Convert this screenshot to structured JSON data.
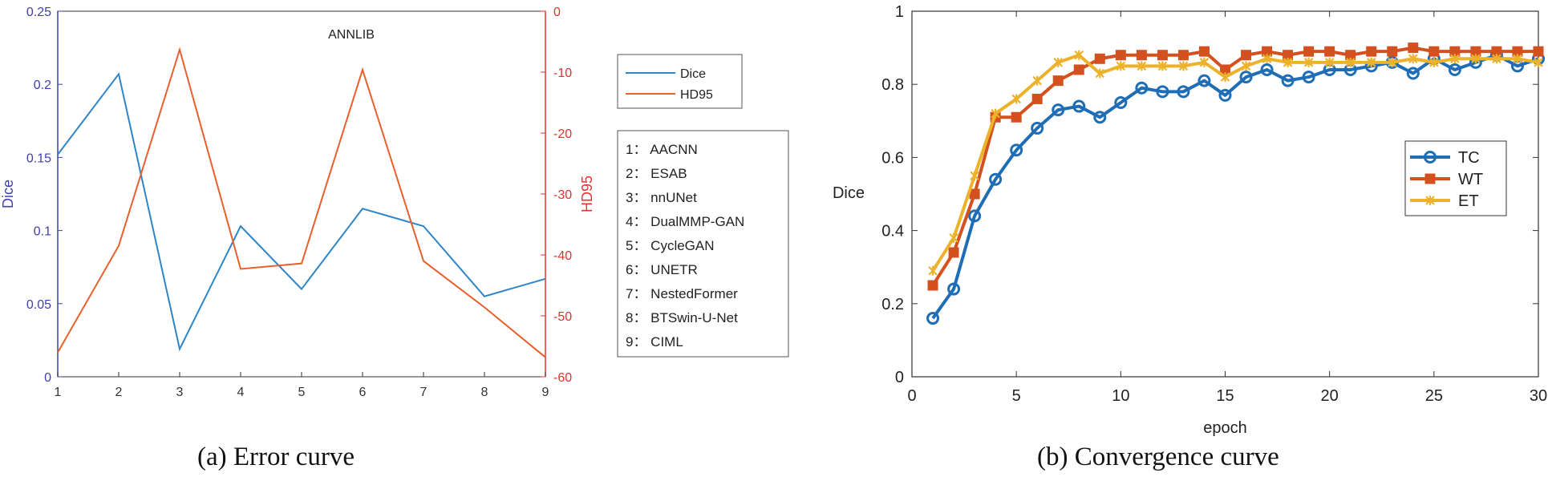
{
  "chart_data": [
    {
      "type": "line",
      "title": "ANNLIB",
      "caption": "(a) Error curve",
      "x": [
        1,
        2,
        3,
        4,
        5,
        6,
        7,
        8,
        9
      ],
      "xlim": [
        1,
        9
      ],
      "xticks": [
        "1",
        "2",
        "3",
        "4",
        "5",
        "6",
        "7",
        "8",
        "9"
      ],
      "ylabel_left": "Dice",
      "ylim_left": [
        0,
        0.25
      ],
      "yticks_left": [
        "0",
        "0.05",
        "0.1",
        "0.15",
        "0.2",
        "0.25"
      ],
      "ylabel_right": "HD95",
      "ylim_right": [
        -60,
        0
      ],
      "yticks_right": [
        "-60",
        "-50",
        "-40",
        "-30",
        "-20",
        "-10",
        "0"
      ],
      "series": [
        {
          "name": "Dice",
          "axis": "left",
          "color": "#2E86C8",
          "values": [
            0.152,
            0.207,
            0.019,
            0.103,
            0.06,
            0.115,
            0.103,
            0.055,
            0.067
          ]
        },
        {
          "name": "HD95",
          "axis": "right",
          "color": "#E8602C",
          "values": [
            -56,
            -38.5,
            -6.3,
            -42.3,
            -41.4,
            -9.6,
            -41,
            -48.6,
            -56.8
          ]
        }
      ],
      "legend": [
        "Dice",
        "HD95"
      ],
      "method_list": [
        "1： AACNN",
        "2： ESAB",
        "3： nnUNet",
        "4： DualMMP-GAN",
        "5： CycleGAN",
        "6： UNETR",
        "7： NestedFormer",
        "8： BTSwin-U-Net",
        "9： CIML"
      ],
      "grid": false
    },
    {
      "type": "line",
      "caption": "(b) Convergence curve",
      "xlabel": "epoch",
      "ylabel": "Dice",
      "xlim": [
        0,
        30
      ],
      "ylim": [
        0,
        1
      ],
      "xticks": [
        "0",
        "5",
        "10",
        "15",
        "20",
        "25",
        "30"
      ],
      "yticks": [
        "0",
        "0.2",
        "0.4",
        "0.6",
        "0.8",
        "1"
      ],
      "x": [
        1,
        2,
        3,
        4,
        5,
        6,
        7,
        8,
        9,
        10,
        11,
        12,
        13,
        14,
        15,
        16,
        17,
        18,
        19,
        20,
        21,
        22,
        23,
        24,
        25,
        26,
        27,
        28,
        29,
        30
      ],
      "series": [
        {
          "name": "TC",
          "marker": "circle",
          "color": "#1F6EB5",
          "values": [
            0.16,
            0.24,
            0.44,
            0.54,
            0.62,
            0.68,
            0.73,
            0.74,
            0.71,
            0.75,
            0.79,
            0.78,
            0.78,
            0.81,
            0.77,
            0.82,
            0.84,
            0.81,
            0.82,
            0.84,
            0.84,
            0.85,
            0.86,
            0.83,
            0.87,
            0.84,
            0.86,
            0.88,
            0.85,
            0.87
          ]
        },
        {
          "name": "WT",
          "marker": "square",
          "color": "#D4501E",
          "values": [
            0.25,
            0.34,
            0.5,
            0.71,
            0.71,
            0.76,
            0.81,
            0.84,
            0.87,
            0.88,
            0.88,
            0.88,
            0.88,
            0.89,
            0.84,
            0.88,
            0.89,
            0.88,
            0.89,
            0.89,
            0.88,
            0.89,
            0.89,
            0.9,
            0.89,
            0.89,
            0.89,
            0.89,
            0.89,
            0.89
          ]
        },
        {
          "name": "ET",
          "marker": "x",
          "color": "#EDB22C",
          "values": [
            0.29,
            0.38,
            0.55,
            0.72,
            0.76,
            0.81,
            0.86,
            0.88,
            0.83,
            0.85,
            0.85,
            0.85,
            0.85,
            0.86,
            0.82,
            0.85,
            0.87,
            0.86,
            0.86,
            0.86,
            0.86,
            0.86,
            0.86,
            0.87,
            0.86,
            0.87,
            0.87,
            0.87,
            0.87,
            0.86
          ]
        }
      ],
      "legend": [
        "TC",
        "WT",
        "ET"
      ],
      "legend_position": "right",
      "grid": false
    }
  ]
}
